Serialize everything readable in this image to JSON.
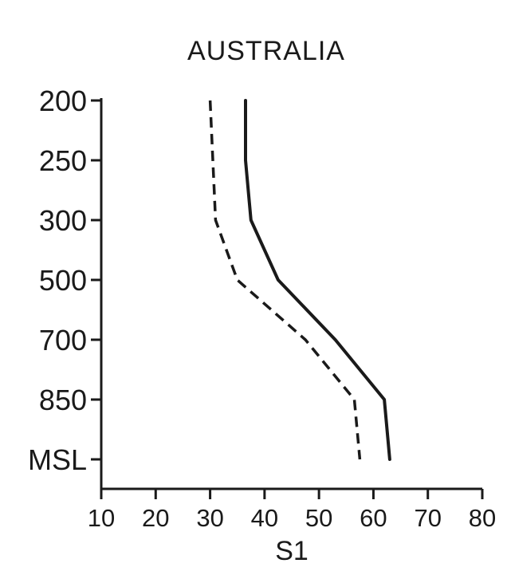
{
  "chart_data": {
    "type": "line",
    "title": "AUSTRALIA",
    "xlabel": "S1",
    "ylabel": "",
    "xlim": [
      10,
      80
    ],
    "x_ticks": [
      "10",
      "20",
      "30",
      "40",
      "50",
      "60",
      "70",
      "80"
    ],
    "y_categories": [
      "200",
      "250",
      "300",
      "500",
      "700",
      "850",
      "MSL"
    ],
    "grid": false,
    "legend": "none",
    "series": [
      {
        "style": "solid",
        "color": "#1a1a1a",
        "values": [
          36.5,
          36.5,
          37.5,
          42.5,
          53.0,
          62.0,
          63.0
        ]
      },
      {
        "style": "dashed",
        "color": "#1a1a1a",
        "values": [
          30.0,
          30.5,
          31.0,
          35.0,
          47.5,
          56.5,
          57.5
        ]
      }
    ]
  }
}
